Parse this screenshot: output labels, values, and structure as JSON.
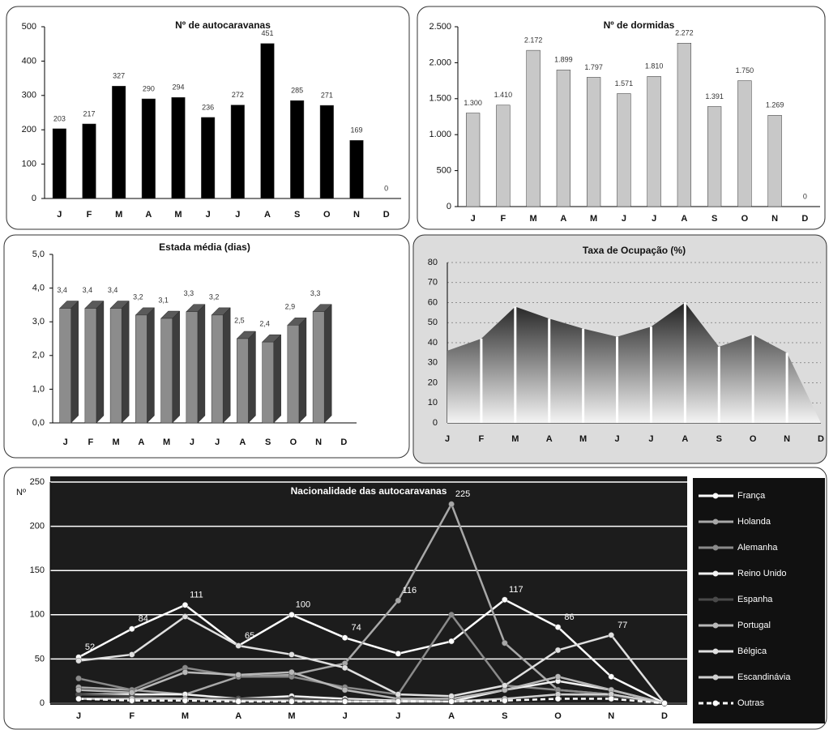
{
  "chart_data": [
    {
      "type": "bar",
      "title": "Nº de autocaravanas",
      "categories": [
        "J",
        "F",
        "M",
        "A",
        "M",
        "J",
        "J",
        "A",
        "S",
        "O",
        "N",
        "D"
      ],
      "values": [
        203,
        217,
        327,
        290,
        294,
        236,
        272,
        451,
        285,
        271,
        169,
        0
      ],
      "color": "#000000",
      "ylim": [
        0,
        500
      ],
      "yticks": [
        0,
        100,
        200,
        300,
        400,
        500
      ],
      "grid": false
    },
    {
      "type": "bar",
      "title": "Nº de dormidas",
      "categories": [
        "J",
        "F",
        "M",
        "A",
        "M",
        "J",
        "J",
        "A",
        "S",
        "O",
        "N",
        "D"
      ],
      "values": [
        1300,
        1410,
        2172,
        1899,
        1797,
        1571,
        1810,
        2272,
        1391,
        1750,
        1269,
        0
      ],
      "value_labels": [
        "1.300",
        "1.410",
        "2.172",
        "1.899",
        "1.797",
        "1.571",
        "1.810",
        "2.272",
        "1.391",
        "1.750",
        "1.269",
        "0"
      ],
      "color": "#c8c8c8",
      "ylim": [
        0,
        2500
      ],
      "yticks": [
        0,
        500,
        {
          "value": 1000,
          "label": "1.000"
        },
        {
          "value": 1500,
          "label": "1.500"
        },
        {
          "value": 2000,
          "label": "2.000"
        },
        {
          "value": 2500,
          "label": "2.500"
        }
      ],
      "grid": false
    },
    {
      "type": "bar",
      "title": "Estada média (dias)",
      "three_d": true,
      "categories": [
        "J",
        "F",
        "M",
        "A",
        "M",
        "J",
        "J",
        "A",
        "S",
        "O",
        "N",
        "D"
      ],
      "values": [
        3.4,
        3.4,
        3.4,
        3.2,
        3.1,
        3.3,
        3.2,
        2.5,
        2.4,
        2.9,
        3.3,
        null
      ],
      "value_labels": [
        "3,4",
        "3,4",
        "3,4",
        "3,2",
        "3,1",
        "3,3",
        "3,2",
        "2,5",
        "2,4",
        "2,9",
        "3,3",
        null
      ],
      "color": "#8c8c8c",
      "ylim": [
        0,
        5
      ],
      "yticks": [
        {
          "value": 0,
          "label": "0,0"
        },
        {
          "value": 1,
          "label": "1,0"
        },
        {
          "value": 2,
          "label": "2,0"
        },
        {
          "value": 3,
          "label": "3,0"
        },
        {
          "value": 4,
          "label": "4,0"
        },
        {
          "value": 5,
          "label": "5,0"
        }
      ],
      "grid": false
    },
    {
      "type": "area",
      "title": "Taxa de Ocupação (%)",
      "categories": [
        "J",
        "F",
        "M",
        "A",
        "M",
        "J",
        "J",
        "A",
        "S",
        "O",
        "N",
        "D"
      ],
      "values": [
        36,
        42,
        58,
        52,
        47,
        43,
        48,
        60,
        38,
        44,
        35,
        0
      ],
      "color": "#3a3a3a",
      "ylim": [
        0,
        80
      ],
      "yticks": [
        0,
        10,
        20,
        30,
        40,
        50,
        60,
        70,
        80
      ],
      "grid": true
    },
    {
      "type": "line",
      "title": "Nacionalidade das autocaravanas",
      "ylabel": "Nº",
      "categories": [
        "J",
        "F",
        "M",
        "A",
        "M",
        "J",
        "J",
        "A",
        "S",
        "O",
        "N",
        "D"
      ],
      "ylim": [
        0,
        250
      ],
      "yticks": [
        0,
        50,
        100,
        150,
        200,
        250
      ],
      "grid": true,
      "legend": "right",
      "series": [
        {
          "name": "França",
          "color": "#ffffff",
          "values": [
            52,
            84,
            111,
            65,
            100,
            74,
            56,
            70,
            117,
            86,
            30,
            0
          ],
          "value_labels": [
            "52",
            "84",
            "111",
            "65",
            "100",
            "74",
            null,
            null,
            "117",
            "86",
            null,
            null
          ]
        },
        {
          "name": "Holanda",
          "color": "#a8a8a8",
          "values": [
            18,
            15,
            10,
            30,
            32,
            45,
            116,
            225,
            68,
            15,
            10,
            0
          ],
          "value_labels": [
            null,
            null,
            null,
            null,
            null,
            null,
            "116",
            "225",
            null,
            null,
            null,
            null
          ]
        },
        {
          "name": "Alemanha",
          "color": "#8a8a8a",
          "values": [
            28,
            15,
            40,
            30,
            30,
            18,
            10,
            100,
            20,
            15,
            10,
            0
          ]
        },
        {
          "name": "Reino Unido",
          "color": "#f2f2f2",
          "values": [
            10,
            10,
            10,
            5,
            8,
            5,
            3,
            2,
            15,
            25,
            15,
            0
          ]
        },
        {
          "name": "Espanha",
          "color": "#4a4a4a",
          "values": [
            10,
            8,
            5,
            5,
            5,
            3,
            2,
            2,
            5,
            10,
            8,
            0
          ]
        },
        {
          "name": "Portugal",
          "color": "#b8b8b8",
          "values": [
            15,
            12,
            35,
            32,
            35,
            15,
            5,
            5,
            15,
            30,
            15,
            0
          ]
        },
        {
          "name": "Bélgica",
          "color": "#e0e0e0",
          "values": [
            48,
            55,
            98,
            65,
            55,
            40,
            10,
            8,
            20,
            60,
            77,
            0
          ],
          "value_labels": [
            null,
            null,
            null,
            null,
            null,
            null,
            null,
            null,
            null,
            null,
            "77",
            null
          ]
        },
        {
          "name": "Escandinávia",
          "color": "#cfcfcf",
          "values": [
            5,
            5,
            5,
            3,
            3,
            2,
            2,
            2,
            5,
            10,
            10,
            0
          ]
        },
        {
          "name": "Outras",
          "color": "#ffffff",
          "values": [
            5,
            3,
            3,
            2,
            2,
            2,
            2,
            2,
            3,
            5,
            5,
            0
          ]
        }
      ]
    }
  ]
}
